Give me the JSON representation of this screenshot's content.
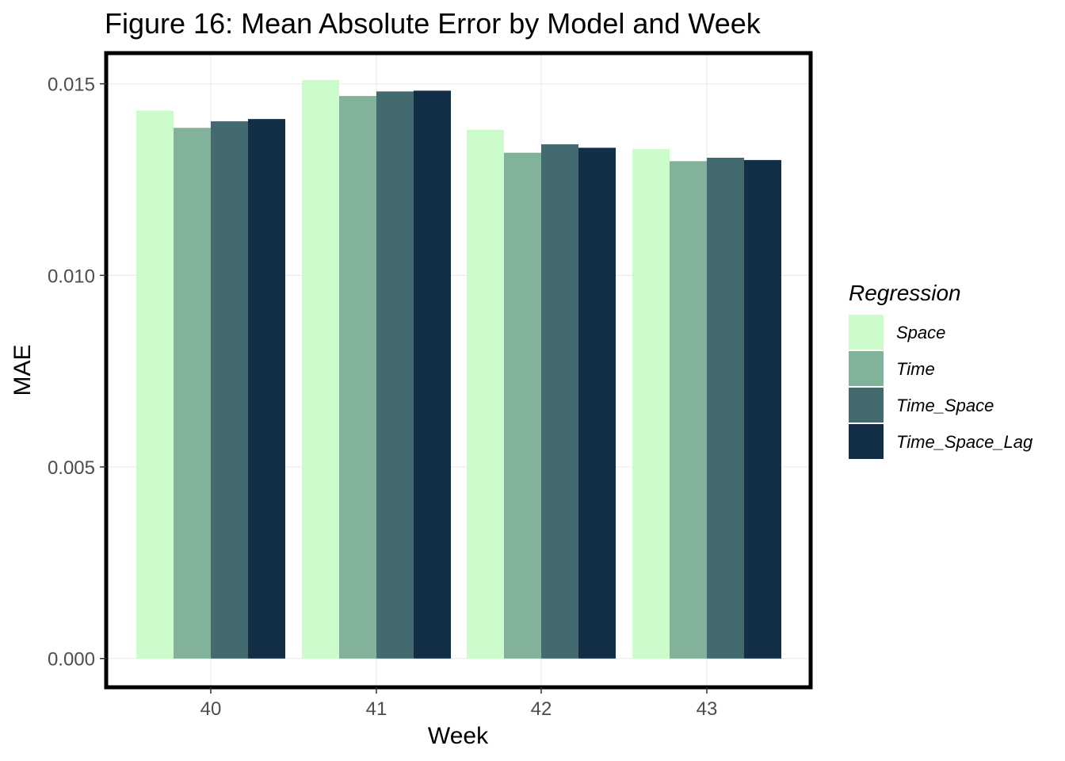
{
  "chart_data": {
    "type": "bar",
    "title": "Figure 16: Mean Absolute Error by Model and Week",
    "xlabel": "Week",
    "ylabel": "MAE",
    "categories": [
      "40",
      "41",
      "42",
      "43"
    ],
    "ylim": [
      -0.00075,
      0.0158
    ],
    "yticks": [
      "0.000",
      "0.005",
      "0.010",
      "0.015"
    ],
    "ytick_values": [
      0,
      0.005,
      0.01,
      0.015
    ],
    "grid": true,
    "legend": {
      "title": "Regression",
      "position": "right"
    },
    "series": [
      {
        "name": "Space",
        "color": "#ccfccb",
        "values": [
          0.0143,
          0.0151,
          0.0138,
          0.0133
        ]
      },
      {
        "name": "Time",
        "color": "#81b29a",
        "values": [
          0.01385,
          0.01468,
          0.0132,
          0.01298
        ]
      },
      {
        "name": "Time_Space",
        "color": "#436a6e",
        "values": [
          0.01402,
          0.0148,
          0.01342,
          0.01307
        ]
      },
      {
        "name": "Time_Space_Lag",
        "color": "#132f47",
        "values": [
          0.01408,
          0.01482,
          0.01333,
          0.01301
        ]
      }
    ]
  }
}
